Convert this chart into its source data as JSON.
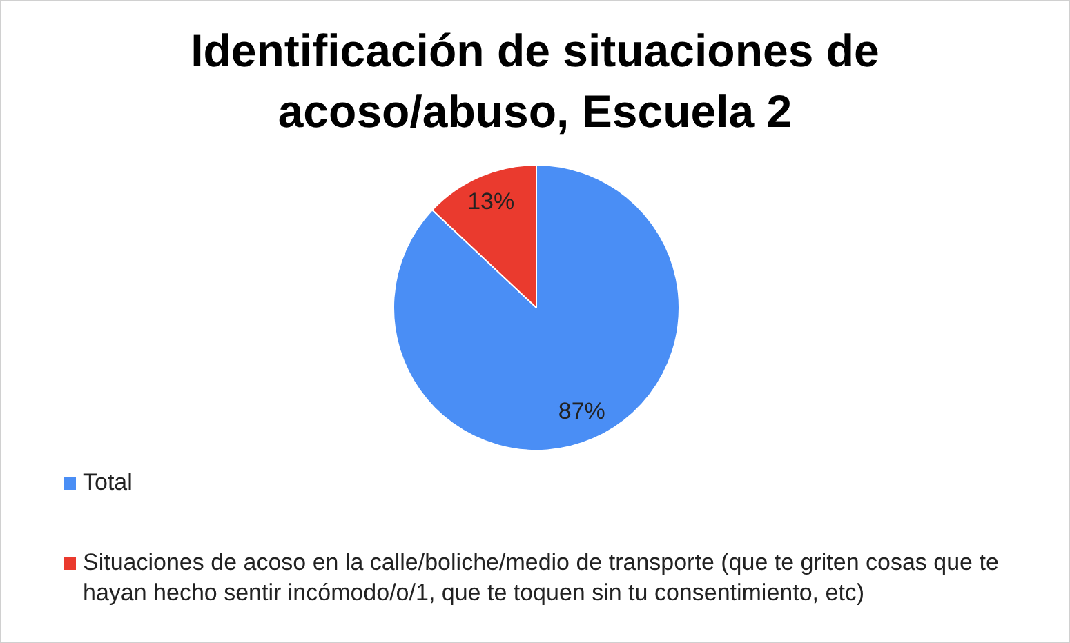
{
  "chart_data": {
    "type": "pie",
    "title": "Identificación de situaciones de acoso/abuso, Escuela 2",
    "categories": [
      "Total",
      "Situaciones de acoso en la calle/boliche/medio de transporte (que te griten cosas que te hayan hecho sentir incómodo/o/1, que te toquen sin tu consentimiento, etc)"
    ],
    "values": [
      87,
      13
    ],
    "colors": [
      "#4a8ef5",
      "#ea3a2e"
    ],
    "value_labels": [
      "87%",
      "13%"
    ],
    "legend": "bottom"
  }
}
